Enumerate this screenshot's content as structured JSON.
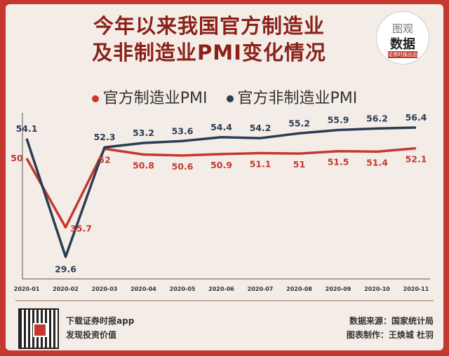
{
  "title_lines": [
    "今年以来我国官方制造业",
    "及非制造业PMI变化情况"
  ],
  "logo": {
    "line1": "图观",
    "line2": "数据",
    "line3": "证券时报出品"
  },
  "legend": [
    {
      "label": "官方制造业PMI",
      "color": "#c4382f"
    },
    {
      "label": "官方非制造业PMI",
      "color": "#2a3d53"
    }
  ],
  "chart_data": {
    "type": "line",
    "x": [
      "2020-01",
      "2020-02",
      "2020-03",
      "2020-04",
      "2020-05",
      "2020-06",
      "2020-07",
      "2020-08",
      "2020-09",
      "2020-10",
      "2020-11"
    ],
    "series": [
      {
        "name": "官方制造业PMI",
        "color": "#c4382f",
        "values": [
          50,
          35.7,
          52,
          50.8,
          50.6,
          50.9,
          51.1,
          51,
          51.5,
          51.4,
          52.1
        ]
      },
      {
        "name": "官方非制造业PMI",
        "color": "#2a3d53",
        "values": [
          54.1,
          29.6,
          52.3,
          53.2,
          53.6,
          54.4,
          54.2,
          55.2,
          55.9,
          56.2,
          56.4
        ]
      }
    ],
    "grid": false,
    "legend_position": "top"
  },
  "footer": {
    "app_line1": "下载证券时报app",
    "app_line2": "发现投资价值",
    "source": "数据来源：国家统计局",
    "credit": "图表制作：王焕城 杜羽"
  }
}
